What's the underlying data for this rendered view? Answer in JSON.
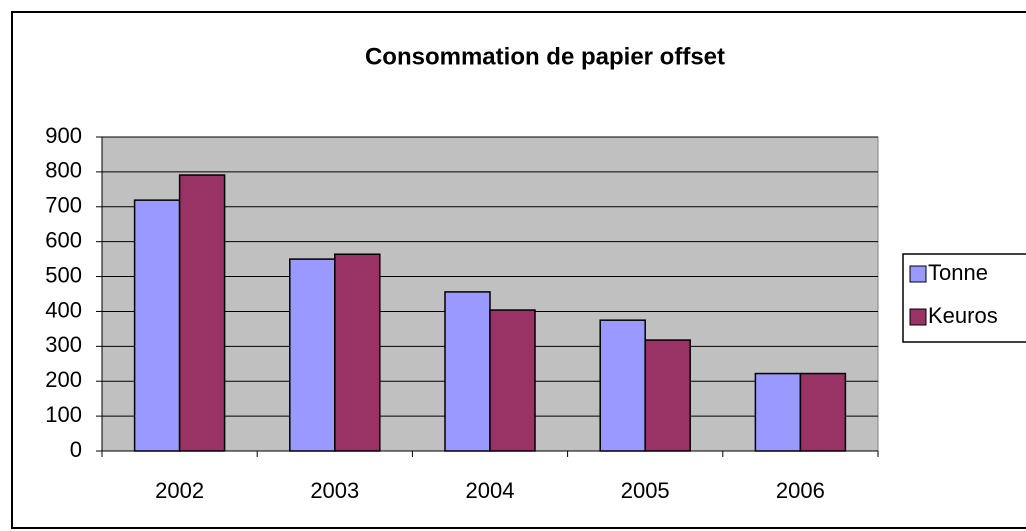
{
  "chart_data": {
    "type": "bar",
    "title": "Consommation de papier offset",
    "categories": [
      "2002",
      "2003",
      "2004",
      "2005",
      "2006"
    ],
    "series": [
      {
        "name": "Tonne",
        "color": "#9999ff",
        "values": [
          719,
          550,
          456,
          375,
          222
        ]
      },
      {
        "name": "Keuros",
        "color": "#993366",
        "values": [
          791,
          564,
          404,
          318,
          222
        ]
      }
    ],
    "ylim": [
      0,
      900
    ],
    "yticks": [
      0,
      100,
      200,
      300,
      400,
      500,
      600,
      700,
      800,
      900
    ],
    "grid": true,
    "legend": "right"
  }
}
